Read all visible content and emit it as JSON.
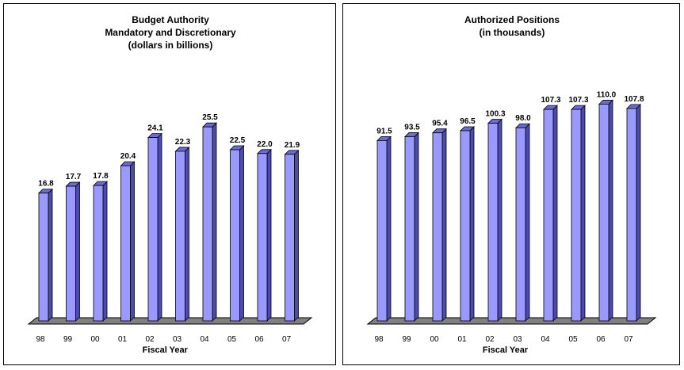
{
  "chart_data": [
    {
      "type": "bar",
      "title": [
        "Budget Authority",
        "Mandatory and Discretionary",
        "(dollars in billions)"
      ],
      "xlabel": "Fiscal Year",
      "ylabel": "",
      "categories": [
        "98",
        "99",
        "00",
        "01",
        "02",
        "03",
        "04",
        "05",
        "06",
        "07"
      ],
      "values": [
        16.8,
        17.7,
        17.8,
        20.4,
        24.1,
        22.3,
        25.5,
        22.5,
        22.0,
        21.9
      ],
      "value_labels": [
        "16.8",
        "17.7",
        "17.8",
        "20.4",
        "24.1",
        "22.3",
        "25.5",
        "22.5",
        "22.0",
        "21.9"
      ],
      "ylim": [
        0,
        30
      ],
      "grid": false,
      "bar_color": "#9999ff"
    },
    {
      "type": "bar",
      "title": [
        "Authorized Positions",
        "(in thousands)"
      ],
      "xlabel": "Fiscal Year",
      "ylabel": "",
      "categories": [
        "98",
        "99",
        "00",
        "01",
        "02",
        "03",
        "04",
        "05",
        "06",
        "07"
      ],
      "values": [
        91.5,
        93.5,
        95.4,
        96.5,
        100.3,
        98.0,
        107.3,
        107.3,
        110.0,
        107.8
      ],
      "value_labels": [
        "91.5",
        "93.5",
        "95.4",
        "96.5",
        "100.3",
        "98.0",
        "107.3",
        "107.3",
        "110.0",
        "107.8"
      ],
      "ylim": [
        0,
        119
      ],
      "grid": false,
      "bar_color": "#9999ff"
    }
  ]
}
